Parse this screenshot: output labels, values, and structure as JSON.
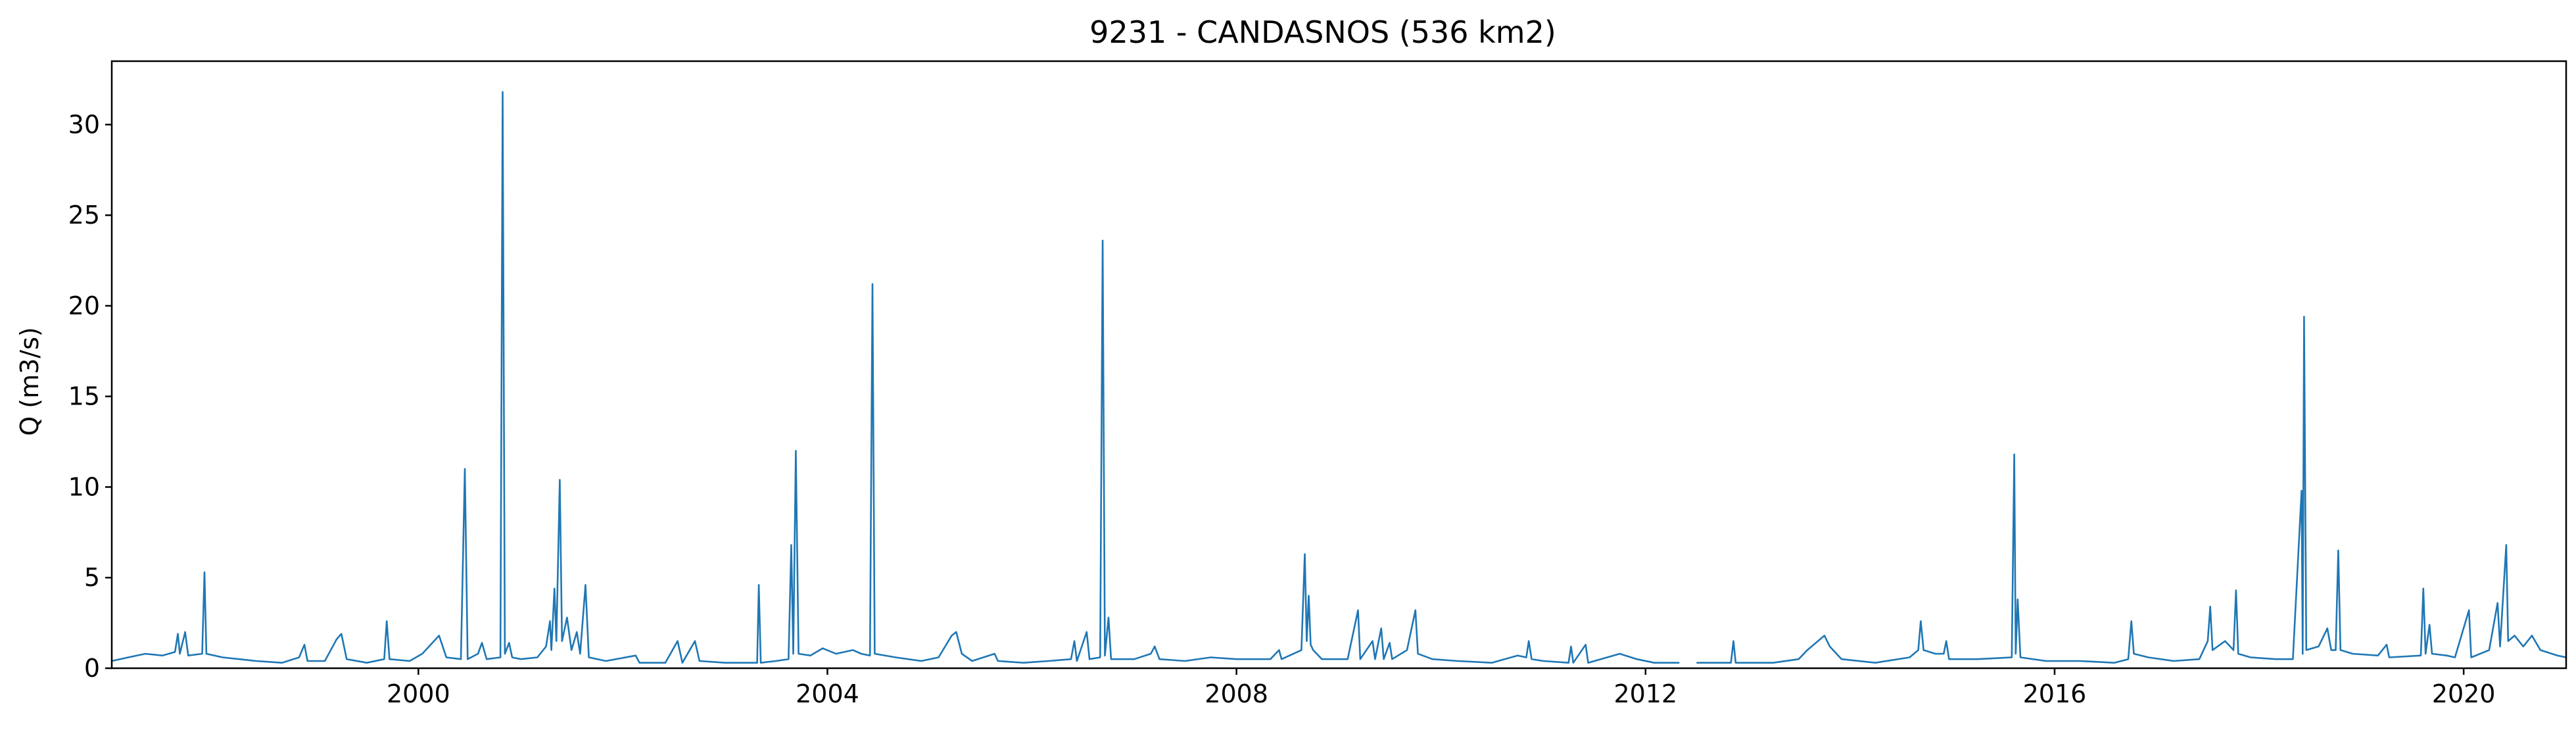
{
  "chart_data": {
    "type": "line",
    "title": "9231 - CANDASNOS (536 km2)",
    "xlabel": "",
    "ylabel": "Q (m3/s)",
    "xlim": [
      "1997-01-01",
      "2021-01-01"
    ],
    "ylim": [
      0,
      33.5
    ],
    "xticks": [
      "2000",
      "2004",
      "2008",
      "2012",
      "2016",
      "2020"
    ],
    "yticks": [
      0,
      5,
      10,
      15,
      20,
      25,
      30
    ],
    "grid": false,
    "series": [
      {
        "color": "#1f77b4",
        "points": [
          [
            "1997-01-01",
            0.4
          ],
          [
            "1997-03-01",
            0.6
          ],
          [
            "1997-05-01",
            0.8
          ],
          [
            "1997-07-01",
            0.7
          ],
          [
            "1997-08-15",
            0.9
          ],
          [
            "1997-08-25",
            1.9
          ],
          [
            "1997-09-01",
            0.8
          ],
          [
            "1997-09-20",
            2.0
          ],
          [
            "1997-10-01",
            0.7
          ],
          [
            "1997-11-20",
            0.8
          ],
          [
            "1997-11-28",
            5.3
          ],
          [
            "1997-12-05",
            0.8
          ],
          [
            "1998-02-01",
            0.6
          ],
          [
            "1998-04-01",
            0.5
          ],
          [
            "1998-06-01",
            0.4
          ],
          [
            "1998-09-01",
            0.3
          ],
          [
            "1998-11-01",
            0.6
          ],
          [
            "1998-11-20",
            1.3
          ],
          [
            "1998-12-01",
            0.4
          ],
          [
            "1999-02-01",
            0.4
          ],
          [
            "1999-03-15",
            1.6
          ],
          [
            "1999-04-01",
            1.9
          ],
          [
            "1999-04-20",
            0.5
          ],
          [
            "1999-07-01",
            0.3
          ],
          [
            "1999-09-01",
            0.5
          ],
          [
            "1999-09-10",
            2.6
          ],
          [
            "1999-09-20",
            0.5
          ],
          [
            "1999-12-01",
            0.4
          ],
          [
            "2000-01-15",
            0.8
          ],
          [
            "2000-03-15",
            1.8
          ],
          [
            "2000-04-10",
            0.6
          ],
          [
            "2000-06-01",
            0.5
          ],
          [
            "2000-06-15",
            11.0
          ],
          [
            "2000-06-25",
            0.5
          ],
          [
            "2000-08-01",
            0.8
          ],
          [
            "2000-08-15",
            1.4
          ],
          [
            "2000-09-01",
            0.5
          ],
          [
            "2000-10-20",
            0.6
          ],
          [
            "2000-10-28",
            31.8
          ],
          [
            "2000-11-05",
            0.8
          ],
          [
            "2000-11-20",
            1.4
          ],
          [
            "2000-12-01",
            0.6
          ],
          [
            "2001-01-01",
            0.5
          ],
          [
            "2001-03-01",
            0.6
          ],
          [
            "2001-04-01",
            1.2
          ],
          [
            "2001-04-15",
            2.6
          ],
          [
            "2001-04-20",
            1.0
          ],
          [
            "2001-05-01",
            4.4
          ],
          [
            "2001-05-08",
            1.5
          ],
          [
            "2001-05-20",
            10.4
          ],
          [
            "2001-05-28",
            1.5
          ],
          [
            "2001-06-15",
            2.8
          ],
          [
            "2001-07-01",
            1.0
          ],
          [
            "2001-07-20",
            2.0
          ],
          [
            "2001-08-01",
            0.8
          ],
          [
            "2001-08-20",
            4.6
          ],
          [
            "2001-09-01",
            0.6
          ],
          [
            "2001-11-01",
            0.4
          ],
          [
            "2002-02-15",
            0.7
          ],
          [
            "2002-03-01",
            0.3
          ],
          [
            "2002-06-01",
            0.3
          ],
          [
            "2002-07-15",
            1.5
          ],
          [
            "2002-08-01",
            0.3
          ],
          [
            "2002-09-15",
            1.5
          ],
          [
            "2002-10-01",
            0.4
          ],
          [
            "2003-01-01",
            0.3
          ],
          [
            "2003-03-01",
            0.3
          ],
          [
            "2003-04-25",
            0.3
          ],
          [
            "2003-05-01",
            4.6
          ],
          [
            "2003-05-08",
            0.3
          ],
          [
            "2003-07-01",
            0.4
          ],
          [
            "2003-08-15",
            0.5
          ],
          [
            "2003-08-25",
            6.8
          ],
          [
            "2003-09-01",
            0.8
          ],
          [
            "2003-09-10",
            12.0
          ],
          [
            "2003-09-20",
            0.8
          ],
          [
            "2003-11-01",
            0.7
          ],
          [
            "2003-12-15",
            1.1
          ],
          [
            "2004-02-01",
            0.8
          ],
          [
            "2004-04-01",
            1.0
          ],
          [
            "2004-05-01",
            0.8
          ],
          [
            "2004-06-01",
            0.7
          ],
          [
            "2004-06-10",
            21.2
          ],
          [
            "2004-06-18",
            0.8
          ],
          [
            "2004-09-01",
            0.6
          ],
          [
            "2004-12-01",
            0.4
          ],
          [
            "2005-02-01",
            0.6
          ],
          [
            "2005-03-20",
            1.8
          ],
          [
            "2005-04-05",
            2.0
          ],
          [
            "2005-04-25",
            0.8
          ],
          [
            "2005-06-01",
            0.4
          ],
          [
            "2005-08-20",
            0.8
          ],
          [
            "2005-09-01",
            0.4
          ],
          [
            "2005-12-01",
            0.3
          ],
          [
            "2006-03-01",
            0.4
          ],
          [
            "2006-05-20",
            0.5
          ],
          [
            "2006-06-01",
            1.5
          ],
          [
            "2006-06-10",
            0.4
          ],
          [
            "2006-07-15",
            2.0
          ],
          [
            "2006-07-25",
            0.5
          ],
          [
            "2006-09-01",
            0.6
          ],
          [
            "2006-09-10",
            23.6
          ],
          [
            "2006-09-18",
            0.7
          ],
          [
            "2006-10-01",
            2.8
          ],
          [
            "2006-10-10",
            0.5
          ],
          [
            "2007-01-01",
            0.5
          ],
          [
            "2007-03-01",
            0.8
          ],
          [
            "2007-03-15",
            1.2
          ],
          [
            "2007-04-01",
            0.5
          ],
          [
            "2007-07-01",
            0.4
          ],
          [
            "2007-10-01",
            0.6
          ],
          [
            "2008-01-01",
            0.5
          ],
          [
            "2008-03-01",
            0.5
          ],
          [
            "2008-05-01",
            0.5
          ],
          [
            "2008-06-01",
            1.0
          ],
          [
            "2008-06-10",
            0.5
          ],
          [
            "2008-08-20",
            1.0
          ],
          [
            "2008-09-01",
            6.3
          ],
          [
            "2008-09-08",
            1.5
          ],
          [
            "2008-09-15",
            4.0
          ],
          [
            "2008-09-22",
            1.3
          ],
          [
            "2008-10-01",
            1.0
          ],
          [
            "2008-11-01",
            0.5
          ],
          [
            "2009-02-01",
            0.5
          ],
          [
            "2009-03-10",
            3.2
          ],
          [
            "2009-03-18",
            0.5
          ],
          [
            "2009-05-01",
            1.5
          ],
          [
            "2009-05-10",
            0.5
          ],
          [
            "2009-06-01",
            2.2
          ],
          [
            "2009-06-10",
            0.5
          ],
          [
            "2009-07-01",
            1.4
          ],
          [
            "2009-07-10",
            0.5
          ],
          [
            "2009-09-01",
            1.0
          ],
          [
            "2009-10-01",
            3.2
          ],
          [
            "2009-10-10",
            0.8
          ],
          [
            "2009-12-01",
            0.5
          ],
          [
            "2010-03-01",
            0.4
          ],
          [
            "2010-07-01",
            0.3
          ],
          [
            "2010-10-01",
            0.7
          ],
          [
            "2010-11-01",
            0.6
          ],
          [
            "2010-11-10",
            1.5
          ],
          [
            "2010-11-20",
            0.5
          ],
          [
            "2011-01-01",
            0.4
          ],
          [
            "2011-04-01",
            0.3
          ],
          [
            "2011-04-10",
            1.2
          ],
          [
            "2011-04-18",
            0.3
          ],
          [
            "2011-06-01",
            1.3
          ],
          [
            "2011-06-10",
            0.3
          ],
          [
            "2011-10-01",
            0.8
          ],
          [
            "2011-12-01",
            0.5
          ],
          [
            "2012-02-01",
            0.3
          ],
          [
            "2012-05-01",
            0.3
          ],
          null,
          [
            "2012-07-01",
            0.3
          ],
          [
            "2012-11-01",
            0.3
          ],
          [
            "2012-11-10",
            1.5
          ],
          [
            "2012-11-18",
            0.3
          ],
          [
            "2013-04-01",
            0.3
          ],
          [
            "2013-07-01",
            0.5
          ],
          [
            "2013-08-01",
            1.0
          ],
          [
            "2013-10-01",
            1.8
          ],
          [
            "2013-10-20",
            1.2
          ],
          [
            "2013-12-01",
            0.5
          ],
          [
            "2014-04-01",
            0.3
          ],
          [
            "2014-08-01",
            0.6
          ],
          [
            "2014-09-01",
            1.0
          ],
          [
            "2014-09-10",
            2.6
          ],
          [
            "2014-09-20",
            1.0
          ],
          [
            "2014-11-01",
            0.8
          ],
          [
            "2014-12-01",
            0.8
          ],
          [
            "2014-12-10",
            1.5
          ],
          [
            "2014-12-20",
            0.5
          ],
          [
            "2015-04-01",
            0.5
          ],
          [
            "2015-08-01",
            0.6
          ],
          [
            "2015-08-10",
            11.8
          ],
          [
            "2015-08-15",
            0.8
          ],
          [
            "2015-08-22",
            3.8
          ],
          [
            "2015-09-01",
            0.6
          ],
          [
            "2015-12-01",
            0.4
          ],
          [
            "2016-04-01",
            0.4
          ],
          [
            "2016-08-01",
            0.3
          ],
          [
            "2016-09-20",
            0.5
          ],
          [
            "2016-10-01",
            2.6
          ],
          [
            "2016-10-10",
            0.8
          ],
          [
            "2016-12-01",
            0.6
          ],
          [
            "2017-03-01",
            0.4
          ],
          [
            "2017-06-01",
            0.5
          ],
          [
            "2017-07-01",
            1.5
          ],
          [
            "2017-07-10",
            3.4
          ],
          [
            "2017-07-18",
            1.0
          ],
          [
            "2017-09-01",
            1.5
          ],
          [
            "2017-10-01",
            1.0
          ],
          [
            "2017-10-10",
            4.3
          ],
          [
            "2017-10-18",
            0.8
          ],
          [
            "2017-12-01",
            0.6
          ],
          [
            "2018-03-01",
            0.5
          ],
          [
            "2018-05-01",
            0.5
          ],
          [
            "2018-06-01",
            9.8
          ],
          [
            "2018-06-05",
            0.8
          ],
          [
            "2018-06-10",
            19.4
          ],
          [
            "2018-06-18",
            1.0
          ],
          [
            "2018-08-01",
            1.2
          ],
          [
            "2018-09-01",
            2.2
          ],
          [
            "2018-09-15",
            1.0
          ],
          [
            "2018-10-01",
            1.0
          ],
          [
            "2018-10-10",
            6.5
          ],
          [
            "2018-10-18",
            1.0
          ],
          [
            "2018-12-01",
            0.8
          ],
          [
            "2019-03-01",
            0.7
          ],
          [
            "2019-04-01",
            1.3
          ],
          [
            "2019-04-10",
            0.6
          ],
          [
            "2019-08-01",
            0.7
          ],
          [
            "2019-08-10",
            4.4
          ],
          [
            "2019-08-18",
            0.8
          ],
          [
            "2019-09-01",
            2.4
          ],
          [
            "2019-09-10",
            0.8
          ],
          [
            "2019-11-01",
            0.7
          ],
          [
            "2019-12-01",
            0.6
          ],
          [
            "2020-01-20",
            3.2
          ],
          [
            "2020-01-28",
            0.6
          ],
          [
            "2020-04-01",
            1.0
          ],
          [
            "2020-05-01",
            3.6
          ],
          [
            "2020-05-10",
            1.2
          ],
          [
            "2020-06-01",
            6.8
          ],
          [
            "2020-06-08",
            1.5
          ],
          [
            "2020-07-01",
            1.8
          ],
          [
            "2020-08-01",
            1.2
          ],
          [
            "2020-09-01",
            1.8
          ],
          [
            "2020-10-01",
            1.0
          ],
          [
            "2020-12-01",
            0.7
          ],
          [
            "2021-01-01",
            0.6
          ]
        ]
      }
    ]
  }
}
